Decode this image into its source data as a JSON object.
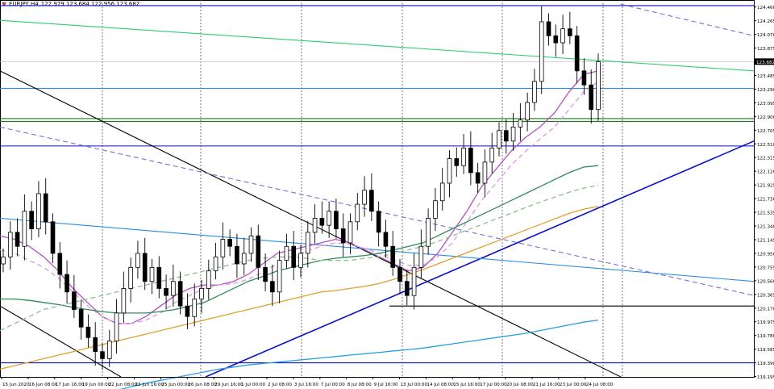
{
  "header": {
    "symbol": "EURJPY,H4",
    "ohlc": "122.979 123.684 122.956 123.682"
  },
  "chart_data": {
    "type": "candlestick",
    "title": "",
    "symbol": "EURJPY,H4",
    "ylim": [
      119.19,
      124.56
    ],
    "y_ticks": [
      "124.460",
      "124.265",
      "124.070",
      "123.875",
      "123.680",
      "123.485",
      "123.290",
      "123.095",
      "122.900",
      "122.705",
      "122.510",
      "122.315",
      "122.120",
      "121.925",
      "121.730",
      "121.535",
      "121.340",
      "121.145",
      "120.950",
      "120.755",
      "120.560",
      "120.365",
      "120.170",
      "119.975",
      "119.780",
      "119.585",
      "119.390",
      "119.195"
    ],
    "x_ticks": [
      "15 Jun 2020",
      "16 Jun 08:00",
      "17 Jun 16:00",
      "19 Jun 00:00",
      "22 Jun 08:00",
      "23 Jun 16:00",
      "25 Jun 00:00",
      "26 Jun 08:00",
      "29 Jun 16:00",
      "1 Jul 00:00",
      "2 Jul 08:00",
      "3 Jul 16:00",
      "7 Jul 00:00",
      "8 Jul 08:00",
      "9 Jul 16:00",
      "13 Jul 00:00",
      "14 Jul 08:00",
      "15 Jul 16:00",
      "17 Jul 00:00",
      "20 Jul 08:00",
      "21 Jul 16:00",
      "23 Jul 00:00",
      "24 Jul 08:00"
    ],
    "current_price": "123.682",
    "candles_close": [
      120.9,
      121.25,
      121.05,
      121.55,
      121.3,
      121.8,
      121.4,
      120.95,
      120.65,
      120.4,
      120.15,
      119.9,
      119.75,
      119.55,
      119.45,
      119.7,
      120.1,
      120.45,
      120.75,
      120.95,
      120.55,
      120.75,
      120.45,
      120.35,
      120.55,
      120.2,
      120.05,
      120.3,
      120.45,
      120.7,
      120.9,
      121.15,
      121.05,
      120.8,
      120.95,
      121.2,
      120.75,
      120.55,
      120.4,
      120.85,
      121.05,
      120.75,
      120.95,
      121.25,
      121.45,
      121.35,
      121.55,
      121.3,
      121.1,
      121.4,
      121.65,
      121.85,
      121.55,
      121.25,
      121.05,
      120.75,
      120.55,
      120.35,
      120.75,
      121.05,
      121.45,
      121.7,
      121.95,
      122.3,
      122.2,
      122.45,
      122.1,
      121.95,
      122.25,
      122.45,
      122.7,
      122.55,
      122.75,
      122.85,
      123.1,
      123.4,
      124.25,
      124.05,
      123.95,
      124.15,
      124.05,
      123.55,
      123.35,
      123.0,
      123.68
    ],
    "horizontal_lines": [
      124.48,
      123.3,
      122.87,
      122.83,
      122.48,
      119.39
    ],
    "moving_averages": [
      {
        "color": "#b44fc4",
        "style": "solid",
        "values": [
          121.2,
          121.15,
          121.05,
          120.9,
          120.7,
          120.45,
          120.25,
          120.05,
          119.95,
          119.95,
          120.05,
          120.2,
          120.35,
          120.45,
          120.5,
          120.5,
          120.55,
          120.65,
          120.8,
          120.95,
          121.0,
          121.05,
          121.1,
          121.15,
          121.1,
          121.0,
          120.9,
          120.8,
          120.7,
          120.75,
          120.95,
          121.25,
          121.55,
          121.9,
          122.15,
          122.4,
          122.6,
          122.75,
          122.95,
          123.25,
          123.5,
          123.55
        ]
      },
      {
        "color": "#d49be0",
        "style": "dashed",
        "values": [
          121.0,
          120.95,
          120.85,
          120.75,
          120.6,
          120.4,
          120.2,
          120.05,
          119.95,
          119.95,
          120.0,
          120.1,
          120.25,
          120.35,
          120.45,
          120.5,
          120.52,
          120.58,
          120.68,
          120.8,
          120.9,
          120.98,
          121.05,
          121.1,
          121.08,
          121.02,
          120.95,
          120.85,
          120.78,
          120.78,
          120.9,
          121.1,
          121.4,
          121.7,
          121.95,
          122.2,
          122.4,
          122.58,
          122.75,
          123.0,
          123.25,
          123.4
        ]
      },
      {
        "color": "#2e8b57",
        "style": "solid",
        "values": [
          120.3,
          120.3,
          120.28,
          120.25,
          120.22,
          120.18,
          120.15,
          120.12,
          120.1,
          120.1,
          120.1,
          120.12,
          120.15,
          120.2,
          120.25,
          120.35,
          120.45,
          120.55,
          120.62,
          120.7,
          120.75,
          120.8,
          120.85,
          120.88,
          120.9,
          120.92,
          120.95,
          121.0,
          121.05,
          121.1,
          121.2,
          121.3,
          121.4,
          121.5,
          121.6,
          121.7,
          121.8,
          121.9,
          122.0,
          122.1,
          122.18,
          122.2
        ]
      },
      {
        "color": "#8fbc8f",
        "style": "dashed",
        "values": [
          119.85,
          119.95,
          120.05,
          120.15,
          120.2,
          120.25,
          120.3,
          120.35,
          120.4,
          120.45,
          120.5,
          120.55,
          120.6,
          120.65,
          120.7,
          120.75,
          120.8,
          120.85,
          120.88,
          120.9,
          120.9,
          120.88,
          120.85,
          120.85,
          120.85,
          120.88,
          120.9,
          120.95,
          121.0,
          121.05,
          121.12,
          121.2,
          121.28,
          121.36,
          121.44,
          121.52,
          121.6,
          121.68,
          121.75,
          121.82,
          121.88,
          121.92
        ]
      },
      {
        "color": "#e0a030",
        "style": "solid",
        "values": [
          119.3,
          119.35,
          119.4,
          119.45,
          119.5,
          119.55,
          119.6,
          119.65,
          119.7,
          119.75,
          119.8,
          119.85,
          119.9,
          119.95,
          120.0,
          120.05,
          120.1,
          120.15,
          120.2,
          120.25,
          120.3,
          120.35,
          120.4,
          120.42,
          120.45,
          120.48,
          120.52,
          120.58,
          120.65,
          120.72,
          120.8,
          120.88,
          120.96,
          121.04,
          121.12,
          121.2,
          121.28,
          121.36,
          121.44,
          121.52,
          121.58,
          121.62
        ]
      },
      {
        "color": "#2aa0e0",
        "style": "solid",
        "values": [
          null,
          null,
          null,
          null,
          null,
          null,
          null,
          null,
          119.0,
          119.05,
          119.1,
          119.14,
          119.18,
          119.22,
          119.26,
          119.3,
          119.33,
          119.36,
          119.38,
          119.4,
          119.42,
          119.44,
          119.46,
          119.48,
          119.5,
          119.52,
          119.54,
          119.56,
          119.58,
          119.6,
          119.63,
          119.66,
          119.69,
          119.72,
          119.75,
          119.78,
          119.81,
          119.85,
          119.89,
          119.93,
          119.97,
          120.0
        ]
      }
    ],
    "trendlines": [
      {
        "color": "#2ad06a",
        "style": "solid",
        "points": [
          [
            0,
            124.27
          ],
          [
            935,
            123.55
          ]
        ]
      },
      {
        "color": "#000000",
        "style": "solid",
        "points": [
          [
            0,
            123.55
          ],
          [
            770,
            119.19
          ]
        ]
      },
      {
        "color": "#000000",
        "style": "solid",
        "points": [
          [
            0,
            120.2
          ],
          [
            150,
            119.19
          ]
        ]
      },
      {
        "color": "#0a10c8",
        "style": "solid",
        "points": [
          [
            255,
            119.19
          ],
          [
            935,
            122.55
          ]
        ]
      },
      {
        "color": "#2a8ce0",
        "style": "solid",
        "points": [
          [
            0,
            121.45
          ],
          [
            935,
            120.55
          ]
        ]
      },
      {
        "color": "#7070e0",
        "style": "dashed",
        "points": [
          [
            0,
            122.75
          ],
          [
            935,
            120.35
          ]
        ]
      },
      {
        "color": "#7070e0",
        "style": "dashed",
        "points": [
          [
            770,
            124.5
          ],
          [
            935,
            124.05
          ]
        ]
      },
      {
        "color": "#000000",
        "style": "solid",
        "points": [
          [
            483,
            120.2
          ],
          [
            935,
            120.2
          ]
        ]
      }
    ]
  }
}
